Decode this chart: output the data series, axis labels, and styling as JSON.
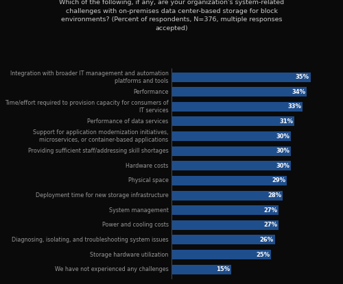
{
  "title": "Which of the following, if any, are your organization's system-related\nchallenges with on-premises data center-based storage for block\nenvironments? (Percent of respondents, N=376, multiple responses\naccepted)",
  "categories": [
    "Integration with broader IT management and automation\nplatforms and tools",
    "Performance",
    "Time/effort required to provision capacity for consumers of\nIT services",
    "Performance of data services",
    "Support for application modernization initiatives,\nmicroservices, or container-based applications",
    "Providing sufficient staff/addressing skill shortages",
    "Hardware costs",
    "Physical space",
    "Deployment time for new storage infrastructure",
    "System management",
    "Power and cooling costs",
    "Diagnosing, isolating, and troubleshooting system issues",
    "Storage hardware utilization",
    "We have not experienced any challenges"
  ],
  "values": [
    35,
    34,
    33,
    31,
    30,
    30,
    30,
    29,
    28,
    27,
    27,
    26,
    25,
    15
  ],
  "bar_color": "#1f4e8c",
  "background_color": "#0a0a0a",
  "title_color": "#cccccc",
  "label_color": "#999999",
  "value_label_color": "#ffffff",
  "title_fontsize": 6.8,
  "label_fontsize": 5.8,
  "value_fontsize": 6.0,
  "xlim": [
    0,
    38
  ]
}
